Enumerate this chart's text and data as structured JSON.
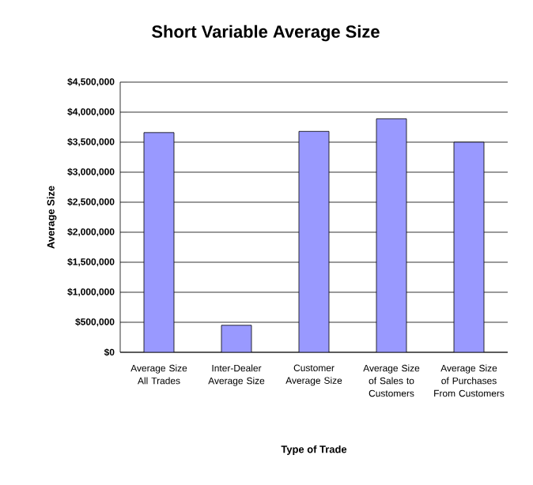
{
  "chart_data": {
    "type": "bar",
    "title": "Short Variable Average Size",
    "xlabel": "Type of Trade",
    "ylabel": "Average Size",
    "categories": [
      "Average Size All Trades",
      "Inter-Dealer Average Size",
      "Customer Average Size",
      "Average Size of Sales to Customers",
      "Average Size of Purchases From Customers"
    ],
    "values": [
      3660000,
      450000,
      3680000,
      3890000,
      3500000
    ],
    "color": "#9999ff",
    "ylim": [
      0,
      4500000
    ],
    "yticks": [
      {
        "value": 0,
        "label": "$0"
      },
      {
        "value": 500000,
        "label": "$500,000"
      },
      {
        "value": 1000000,
        "label": "$1,000,000"
      },
      {
        "value": 1500000,
        "label": "$1,500,000"
      },
      {
        "value": 2000000,
        "label": "$2,000,000"
      },
      {
        "value": 2500000,
        "label": "$2,500,000"
      },
      {
        "value": 3000000,
        "label": "$3,000,000"
      },
      {
        "value": 3500000,
        "label": "$3,500,000"
      },
      {
        "value": 4000000,
        "label": "$4,000,000"
      },
      {
        "value": 4500000,
        "label": "$4,500,000"
      }
    ],
    "grid": "y"
  }
}
